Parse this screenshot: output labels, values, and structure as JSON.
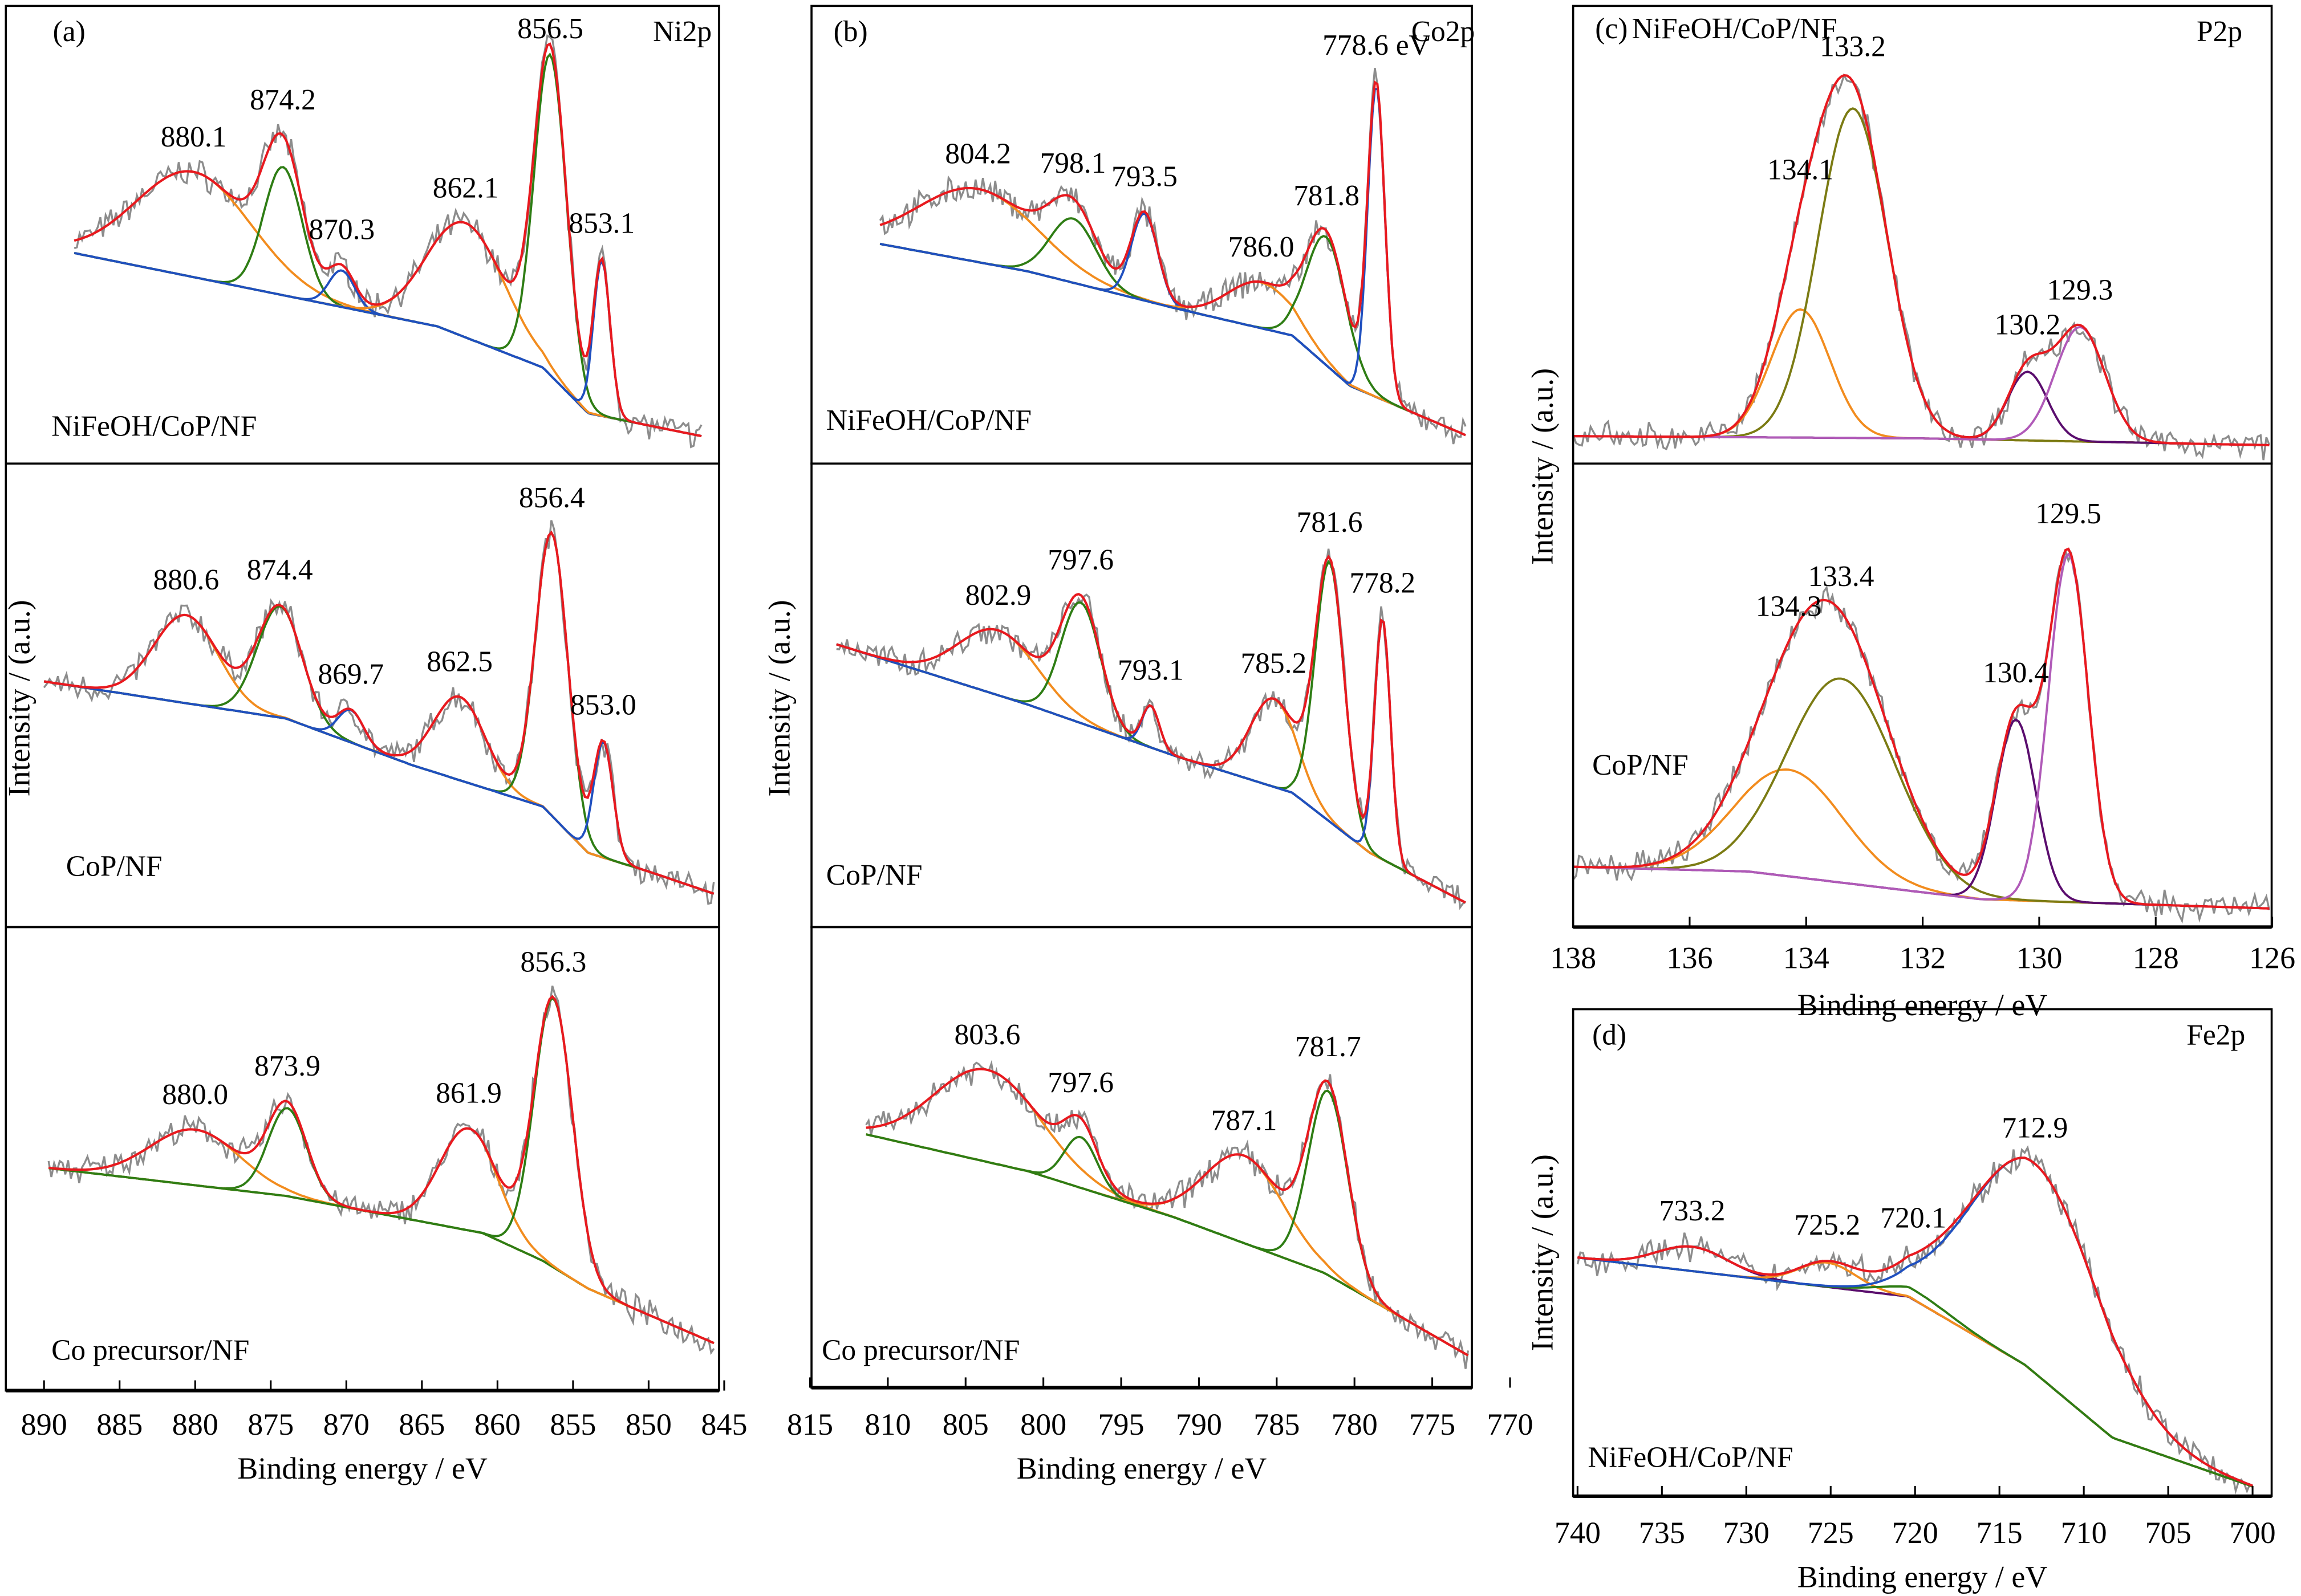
{
  "colors": {
    "raw": "#8c8c8c",
    "envelope": "#e8191f",
    "baseline": "#6a8f1e",
    "orange": "#f28c1e",
    "green": "#2e7d14",
    "blue": "#1f4fbf",
    "olive": "#7b7b13",
    "purple": "#5a0d6e",
    "violet": "#b05ab8"
  },
  "chart_data": [
    {
      "panel": "(a)",
      "element": "Ni2p",
      "type": "line",
      "xlabel": "Binding energy / eV",
      "ylabel": "Intensity / (a.u.)",
      "xlim": [
        890,
        845
      ],
      "x_reversed": true,
      "xticks": [
        "890",
        "885",
        "880",
        "875",
        "870",
        "865",
        "860",
        "855",
        "850",
        "845"
      ],
      "subplots": [
        {
          "sample": "NiFeOH/CoP/NF",
          "baseline": [
            [
              888,
              0.46
            ],
            [
              873,
              0.36
            ],
            [
              864,
              0.3
            ],
            [
              857,
              0.21
            ],
            [
              854,
              0.11
            ],
            [
              846.5,
              0.06
            ]
          ],
          "peaks": [
            {
              "label": "880.1",
              "center": 880.1,
              "height": 0.23,
              "fwhm": 9,
              "color": "orange"
            },
            {
              "label": "874.2",
              "center": 874.2,
              "height": 0.28,
              "fwhm": 3,
              "color": "green"
            },
            {
              "label": "870.3",
              "center": 870.3,
              "height": 0.08,
              "fwhm": 2,
              "color": "blue"
            },
            {
              "label": "862.1",
              "center": 862.1,
              "height": 0.25,
              "fwhm": 6,
              "color": "orange"
            },
            {
              "label": "856.5",
              "center": 856.5,
              "height": 0.7,
              "fwhm": 2.5,
              "color": "green"
            },
            {
              "label": "853.1",
              "center": 853.1,
              "height": 0.34,
              "fwhm": 1.3,
              "color": "blue"
            }
          ]
        },
        {
          "sample": "CoP/NF",
          "baseline": [
            [
              890,
              0.53
            ],
            [
              874,
              0.45
            ],
            [
              865.7,
              0.35
            ],
            [
              857,
              0.26
            ],
            [
              854,
              0.16
            ],
            [
              850,
              0.12
            ],
            [
              845.5,
              0.07
            ]
          ],
          "peaks": [
            {
              "label": "880.6",
              "center": 880.6,
              "height": 0.19,
              "fwhm": 5,
              "color": "orange"
            },
            {
              "label": "874.4",
              "center": 874.4,
              "height": 0.24,
              "fwhm": 3.5,
              "color": "green"
            },
            {
              "label": "869.7",
              "center": 869.7,
              "height": 0.07,
              "fwhm": 2,
              "color": "blue"
            },
            {
              "label": "862.5",
              "center": 862.5,
              "height": 0.18,
              "fwhm": 4,
              "color": "orange"
            },
            {
              "label": "856.4",
              "center": 856.4,
              "height": 0.61,
              "fwhm": 2.5,
              "color": "green"
            },
            {
              "label": "853.0",
              "center": 853.0,
              "height": 0.25,
              "fwhm": 1.5,
              "color": "blue"
            }
          ]
        },
        {
          "sample": "Co precursor/NF",
          "baseline": [
            [
              889.7,
              0.48
            ],
            [
              874,
              0.42
            ],
            [
              861,
              0.34
            ],
            [
              857,
              0.28
            ],
            [
              854,
              0.22
            ],
            [
              845.5,
              0.1
            ]
          ],
          "peaks": [
            {
              "label": "880.0",
              "center": 880.0,
              "height": 0.12,
              "fwhm": 7,
              "color": "orange"
            },
            {
              "label": "873.9",
              "center": 873.9,
              "height": 0.19,
              "fwhm": 3,
              "color": "green"
            },
            {
              "label": "861.9",
              "center": 861.9,
              "height": 0.22,
              "fwhm": 4.5,
              "color": "orange"
            },
            {
              "label": "856.3",
              "center": 856.3,
              "height": 0.58,
              "fwhm": 3,
              "color": "green"
            }
          ]
        }
      ]
    },
    {
      "panel": "(b)",
      "element": "Co2p",
      "type": "line",
      "xlabel": "Binding energy / eV",
      "ylabel": "Intensity / (a.u.)",
      "xlim": [
        815,
        770
      ],
      "x_reversed": true,
      "xticks": [
        "815",
        "810",
        "805",
        "800",
        "795",
        "790",
        "785",
        "780",
        "775",
        "770"
      ],
      "subplots": [
        {
          "sample": "NiFeOH/CoP/NF",
          "baseline": [
            [
              810.5,
              0.48
            ],
            [
              801,
              0.42
            ],
            [
              791.6,
              0.34
            ],
            [
              784,
              0.28
            ],
            [
              780.3,
              0.17
            ],
            [
              772.7,
              0.06
            ]
          ],
          "peaks": [
            {
              "label": "804.2",
              "center": 804.2,
              "height": 0.16,
              "fwhm": 9,
              "color": "orange"
            },
            {
              "label": "798.1",
              "center": 798.1,
              "height": 0.14,
              "fwhm": 3.5,
              "color": "green"
            },
            {
              "label": "793.5",
              "center": 793.5,
              "height": 0.19,
              "fwhm": 2,
              "color": "blue"
            },
            {
              "label": "786.0",
              "center": 786.0,
              "height": 0.1,
              "fwhm": 5,
              "color": "orange"
            },
            {
              "label": "781.8",
              "center": 781.8,
              "height": 0.28,
              "fwhm": 3,
              "color": "green"
            },
            {
              "label": "778.6 eV",
              "center": 778.6,
              "height": 0.68,
              "fwhm": 1.3,
              "color": "blue"
            }
          ]
        },
        {
          "sample": "CoP/NF",
          "baseline": [
            [
              813.3,
              0.61
            ],
            [
              801,
              0.48
            ],
            [
              791.6,
              0.37
            ],
            [
              784,
              0.29
            ],
            [
              779,
              0.16
            ],
            [
              772.7,
              0.05
            ]
          ],
          "peaks": [
            {
              "label": "802.9",
              "center": 802.9,
              "height": 0.14,
              "fwhm": 6,
              "color": "orange"
            },
            {
              "label": "797.6",
              "center": 797.6,
              "height": 0.26,
              "fwhm": 3,
              "color": "green"
            },
            {
              "label": "793.1",
              "center": 793.1,
              "height": 0.09,
              "fwhm": 1.3,
              "color": "blue"
            },
            {
              "label": "785.2",
              "center": 785.2,
              "height": 0.19,
              "fwhm": 3.5,
              "color": "orange"
            },
            {
              "label": "781.6",
              "center": 781.6,
              "height": 0.56,
              "fwhm": 2.2,
              "color": "green"
            },
            {
              "label": "778.2",
              "center": 778.2,
              "height": 0.52,
              "fwhm": 1.2,
              "color": "blue"
            }
          ]
        },
        {
          "sample": "Co precursor/NF",
          "baseline": [
            [
              811.4,
              0.55
            ],
            [
              801,
              0.47
            ],
            [
              791.6,
              0.37
            ],
            [
              782,
              0.25
            ],
            [
              772.7,
              0.07
            ]
          ],
          "peaks": [
            {
              "label": "803.6",
              "center": 803.6,
              "height": 0.2,
              "fwhm": 8,
              "color": "orange"
            },
            {
              "label": "797.6",
              "center": 797.6,
              "height": 0.11,
              "fwhm": 2.5,
              "color": "green"
            },
            {
              "label": "787.1",
              "center": 787.1,
              "height": 0.19,
              "fwhm": 6,
              "color": "orange"
            },
            {
              "label": "781.7",
              "center": 781.7,
              "height": 0.4,
              "fwhm": 3,
              "color": "green"
            }
          ]
        }
      ]
    },
    {
      "panel": "(c)",
      "element": "P2p",
      "type": "line",
      "xlabel": "Binding energy / eV",
      "ylabel": "Intensity / (a.u.)",
      "xlim": [
        138,
        126
      ],
      "x_reversed": true,
      "xticks": [
        "138",
        "136",
        "134",
        "132",
        "130",
        "128",
        "126"
      ],
      "subplots": [
        {
          "sample": "NiFeOH/CoP/NF",
          "baseline": [
            [
              138,
              0.06
            ],
            [
              132,
              0.055
            ],
            [
              126,
              0.04
            ]
          ],
          "peaks": [
            {
              "label": "134.1",
              "center": 134.1,
              "height": 0.28,
              "fwhm": 1.2,
              "color": "orange"
            },
            {
              "label": "133.2",
              "center": 133.2,
              "height": 0.72,
              "fwhm": 1.4,
              "color": "olive"
            },
            {
              "label": "130.2",
              "center": 130.2,
              "height": 0.15,
              "fwhm": 0.8,
              "color": "purple"
            },
            {
              "label": "129.3",
              "center": 129.3,
              "height": 0.25,
              "fwhm": 1.0,
              "color": "violet"
            }
          ]
        },
        {
          "sample": "CoP/NF",
          "baseline": [
            [
              138,
              0.13
            ],
            [
              135,
              0.12
            ],
            [
              131,
              0.06
            ],
            [
              126,
              0.04
            ]
          ],
          "peaks": [
            {
              "label": "134.3",
              "center": 134.3,
              "height": 0.23,
              "fwhm": 2.2,
              "color": "orange"
            },
            {
              "label": "133.4",
              "center": 133.4,
              "height": 0.44,
              "fwhm": 2.2,
              "color": "olive"
            },
            {
              "label": "130.4",
              "center": 130.4,
              "height": 0.39,
              "fwhm": 0.8,
              "color": "purple"
            },
            {
              "label": "129.5",
              "center": 129.5,
              "height": 0.75,
              "fwhm": 0.8,
              "color": "violet"
            }
          ]
        }
      ]
    },
    {
      "panel": "(d)",
      "element": "Fe2p",
      "type": "line",
      "xlabel": "Binding energy / eV",
      "ylabel": "Intensity / (a.u.)",
      "xlim": [
        740,
        700
      ],
      "x_reversed": true,
      "xticks": [
        "740",
        "735",
        "730",
        "725",
        "720",
        "715",
        "710",
        "705",
        "700"
      ],
      "subplots": [
        {
          "sample": "NiFeOH/CoP/NF",
          "baseline": [
            [
              740,
              0.49
            ],
            [
              720.4,
              0.41
            ],
            [
              713.5,
              0.27
            ],
            [
              708.3,
              0.12
            ],
            [
              700,
              0.02
            ]
          ],
          "peaks": [
            {
              "label": "733.2",
              "center": 733.2,
              "height": 0.05,
              "fwhm": 5,
              "color": "purple"
            },
            {
              "label": "725.2",
              "center": 725.2,
              "height": 0.05,
              "fwhm": 4,
              "color": "orange"
            },
            {
              "label": "720.1",
              "center": 720.1,
              "height": 0.02,
              "fwhm": 5,
              "color": "green"
            },
            {
              "label": "712.9",
              "center": 712.9,
              "height": 0.43,
              "fwhm": 9,
              "color": "blue"
            }
          ]
        }
      ]
    }
  ]
}
